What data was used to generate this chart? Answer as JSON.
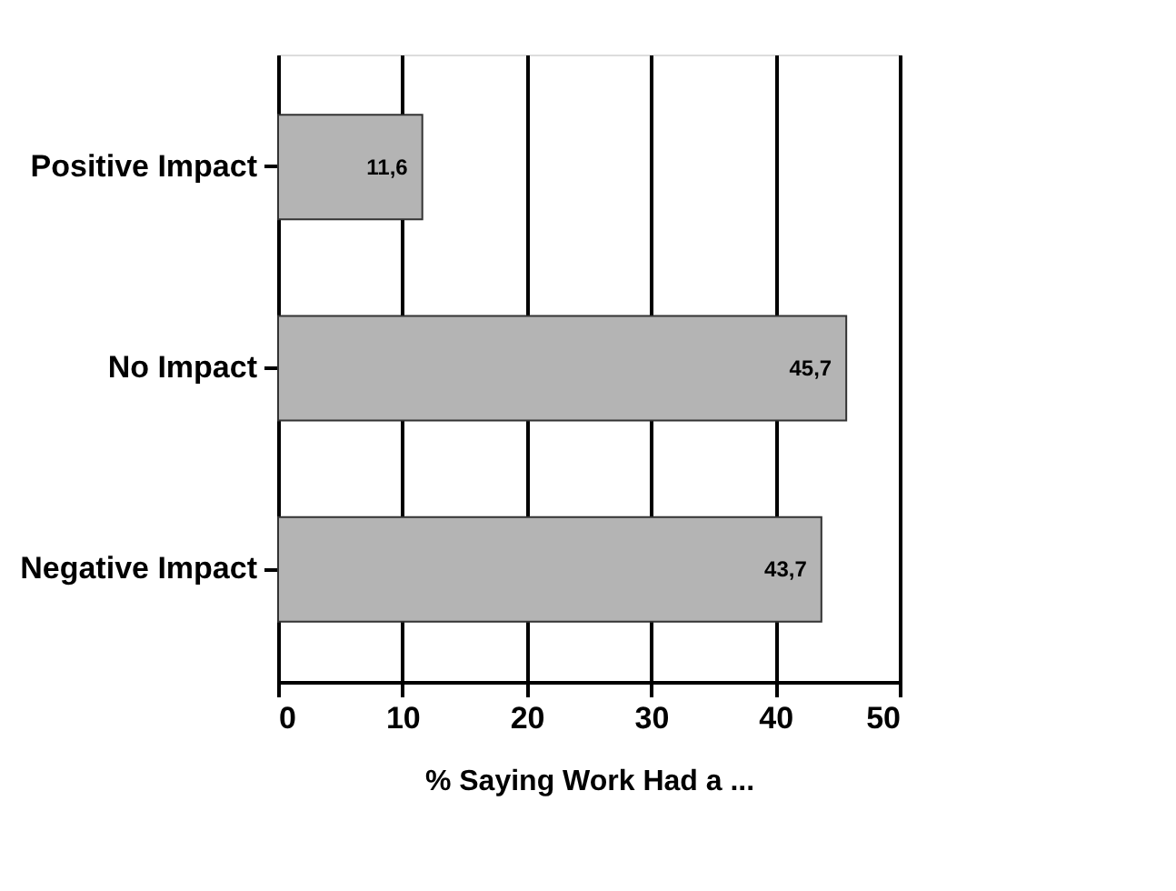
{
  "chart_data": {
    "type": "bar",
    "orientation": "horizontal",
    "xlabel": "% Saying Work Had a ...",
    "categories": [
      "Positive Impact",
      "No Impact",
      "Negative Impact"
    ],
    "values": [
      11.6,
      45.7,
      43.7
    ],
    "value_labels": [
      "11,6",
      "45,7",
      "43,7"
    ],
    "color": "#b4b4b4",
    "xlim": [
      0,
      50
    ],
    "xticks": [
      0,
      10,
      20,
      30,
      40,
      50
    ],
    "grid": "x"
  }
}
